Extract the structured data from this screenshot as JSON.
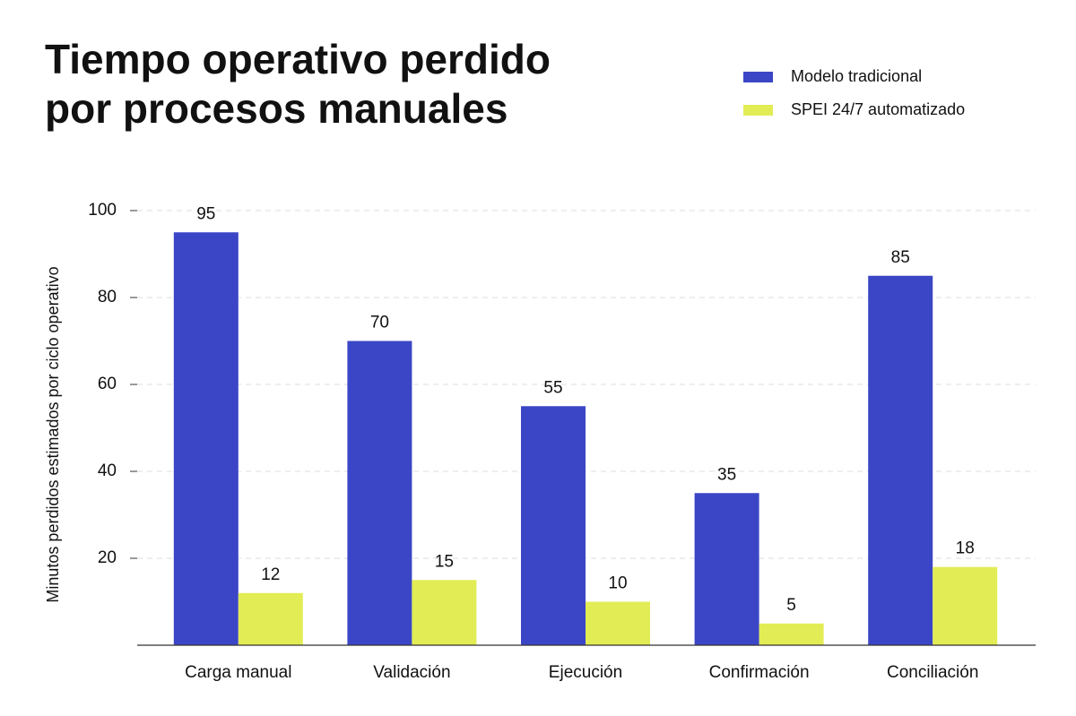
{
  "chart_data": {
    "type": "bar",
    "title": [
      "Tiempo operativo perdido",
      "por procesos manuales"
    ],
    "y_label": "Minutos perdidos estimados por ciclo operativo",
    "categories": [
      "Carga manual",
      "Validación",
      "Ejecución",
      "Confirmación",
      "Conciliación"
    ],
    "series": [
      {
        "name": "Modelo tradicional",
        "color": "#3b46c6",
        "values": [
          95,
          70,
          55,
          35,
          85
        ]
      },
      {
        "name": "SPEI 24/7 automatizado",
        "color": "#e2ec55",
        "values": [
          12,
          15,
          10,
          5,
          18
        ]
      }
    ],
    "ylim": [
      0,
      100
    ],
    "yticks": [
      20,
      40,
      60,
      80,
      100
    ],
    "grid": true,
    "legend": "top-right"
  }
}
